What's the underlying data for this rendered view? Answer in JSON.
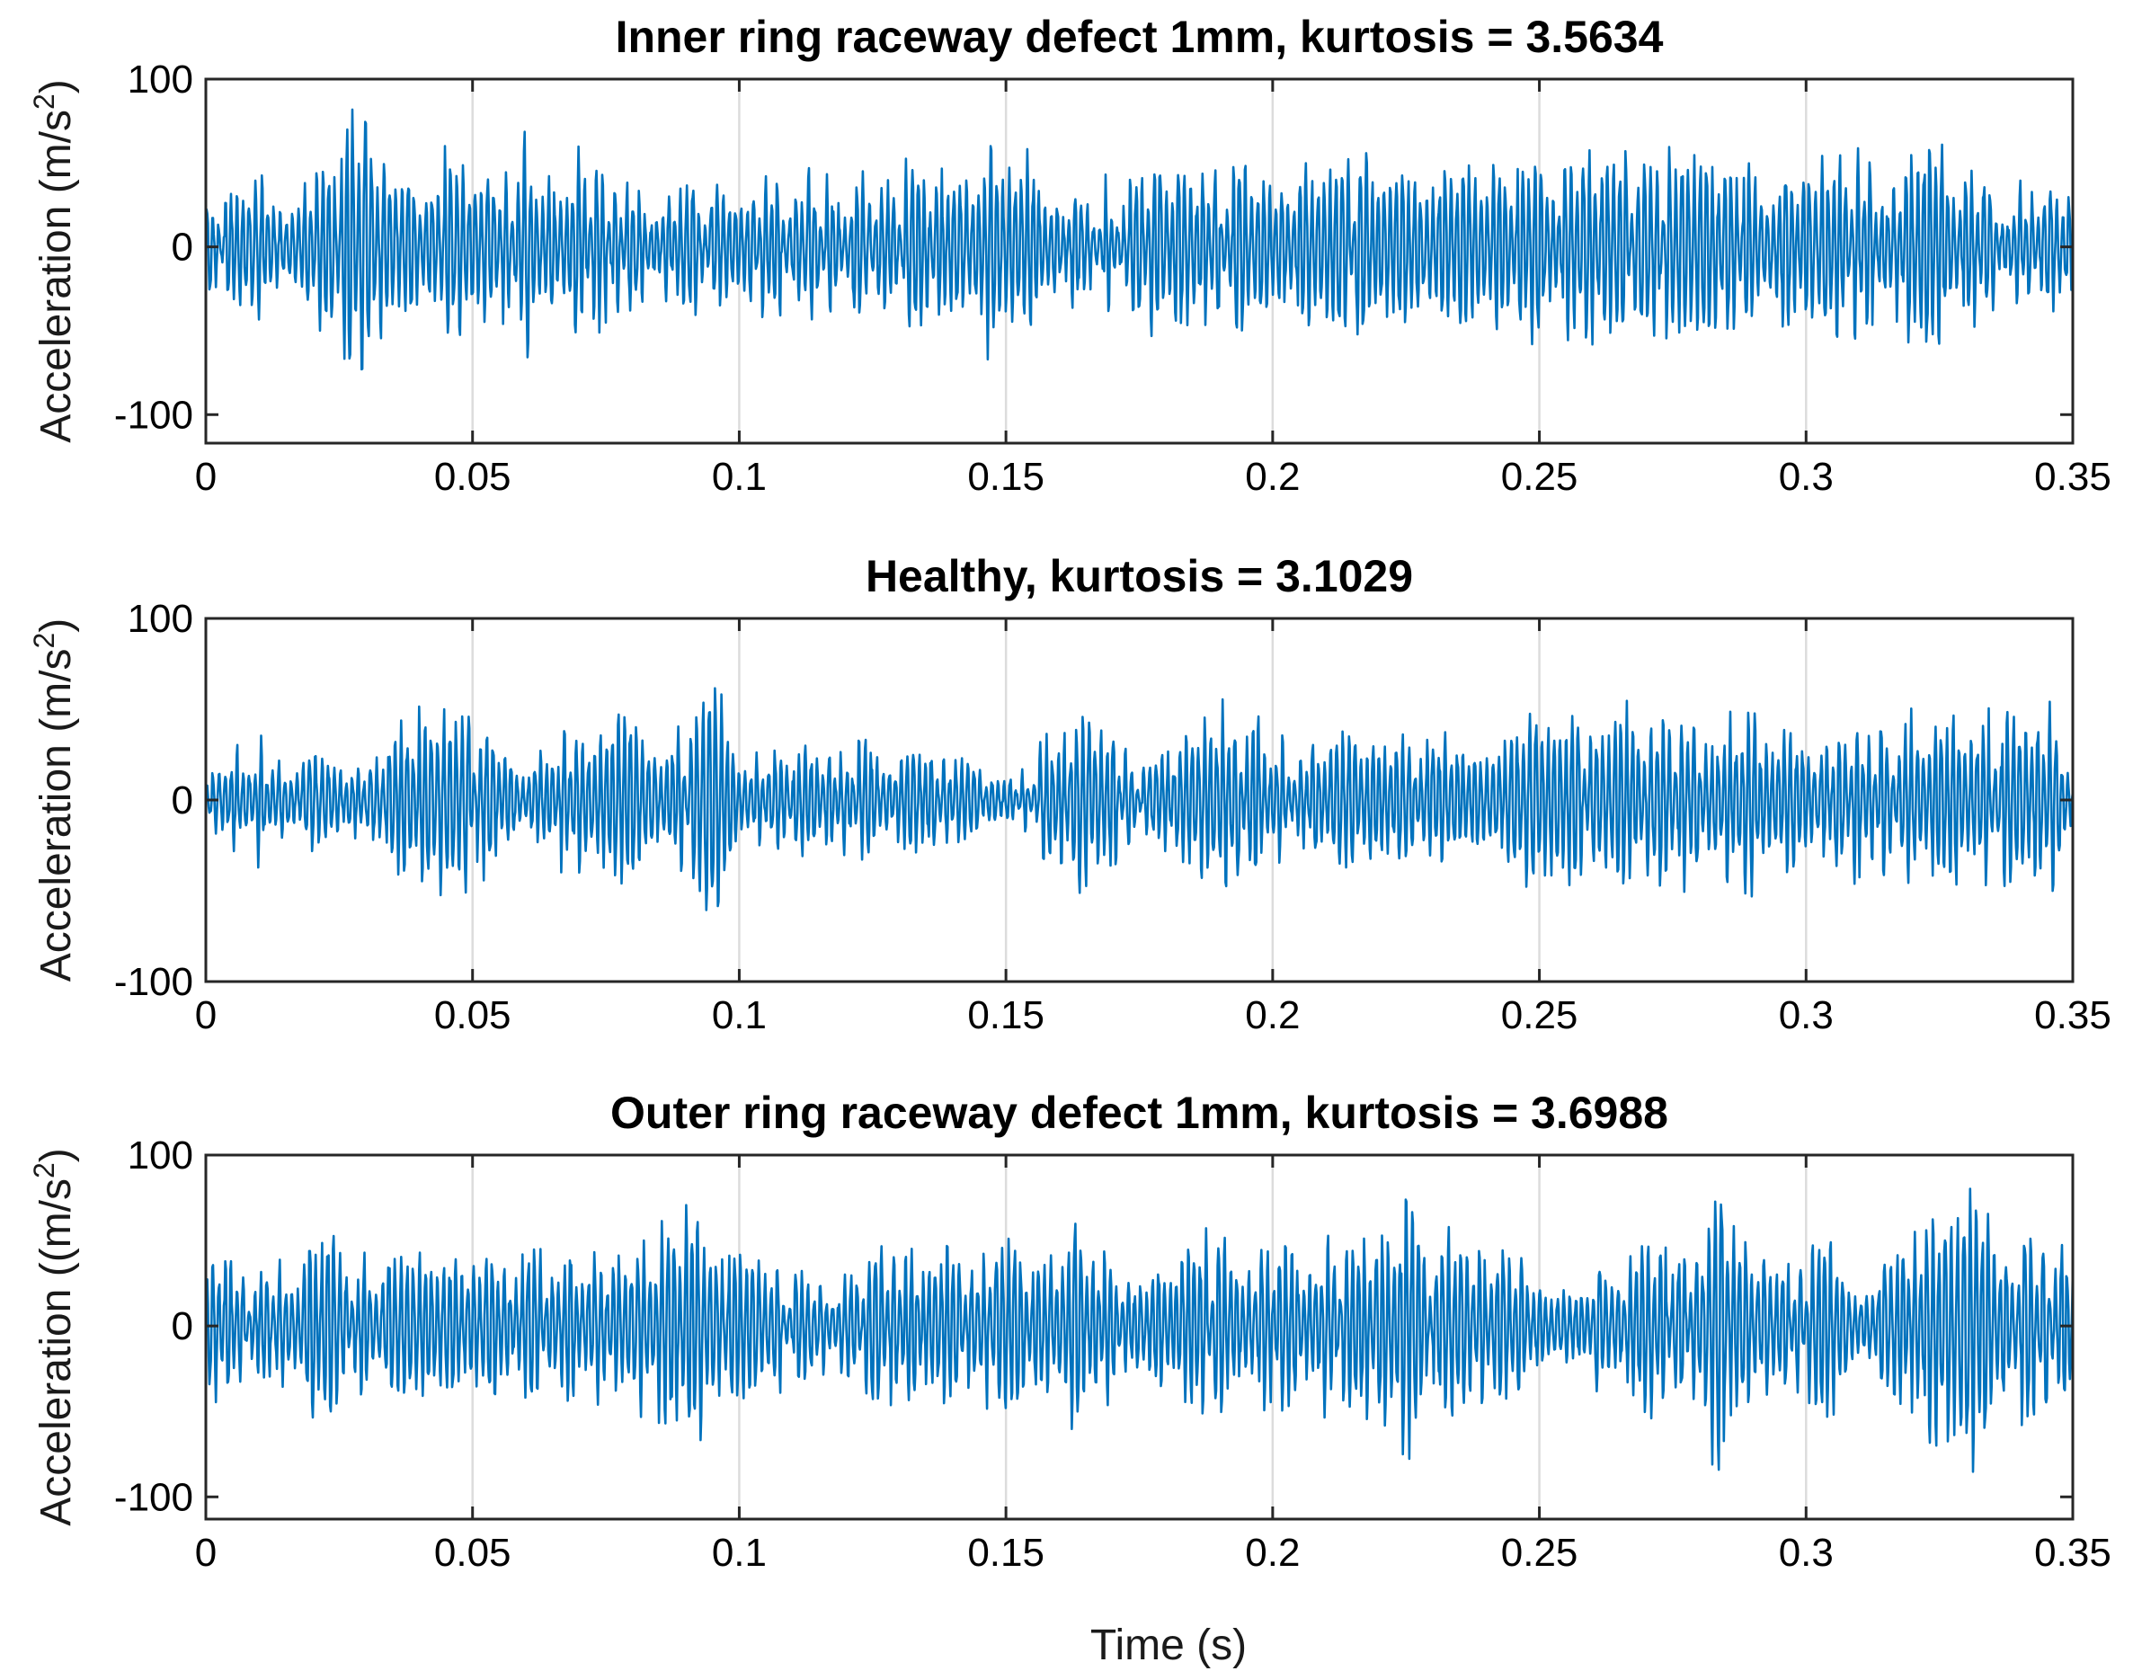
{
  "figure": {
    "xlabel": "Time (s)"
  },
  "chart_data": [
    {
      "type": "line",
      "title": "Inner ring raceway defect 1mm, kurtosis = 3.5634",
      "ylabel_main": "Acceleration (m/s",
      "ylabel_sup": "2",
      "ylabel_tail": ")",
      "xlim": [
        0,
        0.35
      ],
      "ylim": [
        -117,
        100
      ],
      "xticks": [
        0,
        0.05,
        0.1,
        0.15,
        0.2,
        0.25,
        0.3,
        0.35
      ],
      "xtick_labels": [
        "0",
        "0.05",
        "0.1",
        "0.15",
        "0.2",
        "0.25",
        "0.3",
        "0.35"
      ],
      "yticks": [
        -100,
        0,
        100
      ],
      "ytick_labels": [
        "-100",
        "0",
        "100"
      ],
      "grid": "x",
      "series": [
        {
          "color": "#0072BD",
          "x": [
            0,
            0.005,
            0.01,
            0.015,
            0.02,
            0.025,
            0.027,
            0.028,
            0.029,
            0.03,
            0.031,
            0.033,
            0.035,
            0.04,
            0.045,
            0.05,
            0.055,
            0.06,
            0.065,
            0.07,
            0.075,
            0.08,
            0.085,
            0.09,
            0.095,
            0.1,
            0.105,
            0.11,
            0.115,
            0.12,
            0.125,
            0.13,
            0.135,
            0.14,
            0.145,
            0.148,
            0.149,
            0.15,
            0.152,
            0.155,
            0.16,
            0.165,
            0.17,
            0.175,
            0.18,
            0.185,
            0.19,
            0.195,
            0.2,
            0.205,
            0.21,
            0.215,
            0.22,
            0.225,
            0.23,
            0.235,
            0.24,
            0.245,
            0.25,
            0.255,
            0.26,
            0.265,
            0.27,
            0.275,
            0.28,
            0.285,
            0.29,
            0.295,
            0.3,
            0.305,
            0.31,
            0.315,
            0.32,
            0.322,
            0.323,
            0.325,
            0.33,
            0.335,
            0.34,
            0.345,
            0.35
          ],
          "env": [
            32,
            40,
            48,
            42,
            48,
            58,
            96,
            90,
            110,
            117,
            85,
            60,
            50,
            55,
            70,
            62,
            55,
            75,
            58,
            72,
            52,
            45,
            40,
            48,
            45,
            40,
            45,
            55,
            52,
            48,
            50,
            55,
            58,
            48,
            60,
            78,
            90,
            92,
            72,
            55,
            42,
            40,
            48,
            55,
            60,
            68,
            55,
            60,
            52,
            58,
            60,
            62,
            70,
            72,
            65,
            60,
            58,
            62,
            62,
            60,
            62,
            65,
            75,
            60,
            58,
            60,
            62,
            55,
            62,
            60,
            65,
            55,
            82,
            92,
            94,
            70,
            52,
            48,
            42,
            45,
            45
          ]
        }
      ]
    },
    {
      "type": "line",
      "title": "Healthy, kurtosis = 3.1029",
      "ylabel_main": "Acceleration (m/s",
      "ylabel_sup": "2",
      "ylabel_tail": ")",
      "xlim": [
        0,
        0.35
      ],
      "ylim": [
        -100,
        100
      ],
      "xticks": [
        0,
        0.05,
        0.1,
        0.15,
        0.2,
        0.25,
        0.3,
        0.35
      ],
      "xtick_labels": [
        "0",
        "0.05",
        "0.1",
        "0.15",
        "0.2",
        "0.25",
        "0.3",
        "0.35"
      ],
      "yticks": [
        -100,
        0,
        100
      ],
      "ytick_labels": [
        "-100",
        "0",
        "100"
      ],
      "grid": "x",
      "series": [
        {
          "color": "#0072BD",
          "x": [
            0,
            0.005,
            0.01,
            0.015,
            0.02,
            0.025,
            0.03,
            0.035,
            0.04,
            0.045,
            0.05,
            0.055,
            0.06,
            0.065,
            0.07,
            0.075,
            0.08,
            0.085,
            0.09,
            0.095,
            0.097,
            0.1,
            0.105,
            0.11,
            0.115,
            0.12,
            0.125,
            0.13,
            0.135,
            0.14,
            0.145,
            0.15,
            0.155,
            0.16,
            0.165,
            0.17,
            0.175,
            0.18,
            0.185,
            0.19,
            0.195,
            0.2,
            0.205,
            0.21,
            0.215,
            0.22,
            0.225,
            0.23,
            0.235,
            0.24,
            0.245,
            0.25,
            0.255,
            0.26,
            0.265,
            0.27,
            0.275,
            0.28,
            0.285,
            0.29,
            0.295,
            0.3,
            0.305,
            0.31,
            0.315,
            0.32,
            0.325,
            0.33,
            0.335,
            0.34,
            0.345,
            0.35
          ],
          "env": [
            15,
            30,
            40,
            28,
            30,
            32,
            18,
            45,
            78,
            55,
            65,
            40,
            18,
            35,
            55,
            45,
            65,
            55,
            45,
            92,
            70,
            20,
            30,
            35,
            30,
            35,
            38,
            32,
            35,
            30,
            20,
            15,
            30,
            48,
            55,
            52,
            22,
            32,
            50,
            58,
            65,
            50,
            40,
            40,
            45,
            40,
            42,
            45,
            45,
            50,
            52,
            55,
            55,
            58,
            55,
            55,
            58,
            60,
            68,
            55,
            45,
            50,
            52,
            55,
            55,
            50,
            55,
            60,
            55,
            62,
            60,
            58
          ]
        }
      ]
    },
    {
      "type": "line",
      "title": "Outer ring raceway defect 1mm, kurtosis = 3.6988",
      "ylabel_main": "Acceleration ((m/s",
      "ylabel_sup": "2",
      "ylabel_tail": ")",
      "xlim": [
        0,
        0.35
      ],
      "ylim": [
        -113,
        100
      ],
      "xticks": [
        0,
        0.05,
        0.1,
        0.15,
        0.2,
        0.25,
        0.3,
        0.35
      ],
      "xtick_labels": [
        "0",
        "0.05",
        "0.1",
        "0.15",
        "0.2",
        "0.25",
        "0.3",
        "0.35"
      ],
      "yticks": [
        -100,
        0,
        100
      ],
      "ytick_labels": [
        "-100",
        "0",
        "100"
      ],
      "grid": "x",
      "series": [
        {
          "color": "#0072BD",
          "x": [
            0,
            0.002,
            0.005,
            0.01,
            0.015,
            0.02,
            0.025,
            0.03,
            0.035,
            0.04,
            0.045,
            0.05,
            0.055,
            0.06,
            0.065,
            0.07,
            0.075,
            0.08,
            0.085,
            0.089,
            0.09,
            0.091,
            0.095,
            0.1,
            0.105,
            0.11,
            0.115,
            0.12,
            0.125,
            0.13,
            0.135,
            0.14,
            0.145,
            0.15,
            0.155,
            0.16,
            0.163,
            0.165,
            0.17,
            0.175,
            0.18,
            0.185,
            0.19,
            0.195,
            0.2,
            0.205,
            0.21,
            0.215,
            0.22,
            0.225,
            0.23,
            0.235,
            0.24,
            0.245,
            0.25,
            0.255,
            0.26,
            0.265,
            0.27,
            0.275,
            0.28,
            0.283,
            0.284,
            0.285,
            0.29,
            0.295,
            0.3,
            0.305,
            0.31,
            0.315,
            0.32,
            0.325,
            0.33,
            0.335,
            0.34,
            0.345,
            0.35
          ],
          "env": [
            50,
            72,
            45,
            35,
            45,
            80,
            60,
            45,
            50,
            48,
            55,
            50,
            52,
            50,
            55,
            48,
            50,
            55,
            60,
            92,
            112,
            90,
            55,
            50,
            45,
            42,
            48,
            50,
            55,
            50,
            52,
            55,
            50,
            62,
            55,
            70,
            100,
            60,
            55,
            55,
            48,
            55,
            62,
            58,
            60,
            52,
            55,
            58,
            60,
            85,
            58,
            60,
            55,
            55,
            62,
            52,
            58,
            60,
            65,
            55,
            72,
            105,
            100,
            78,
            55,
            50,
            55,
            58,
            60,
            60,
            62,
            80,
            100,
            72,
            68,
            65,
            50
          ]
        }
      ]
    }
  ]
}
